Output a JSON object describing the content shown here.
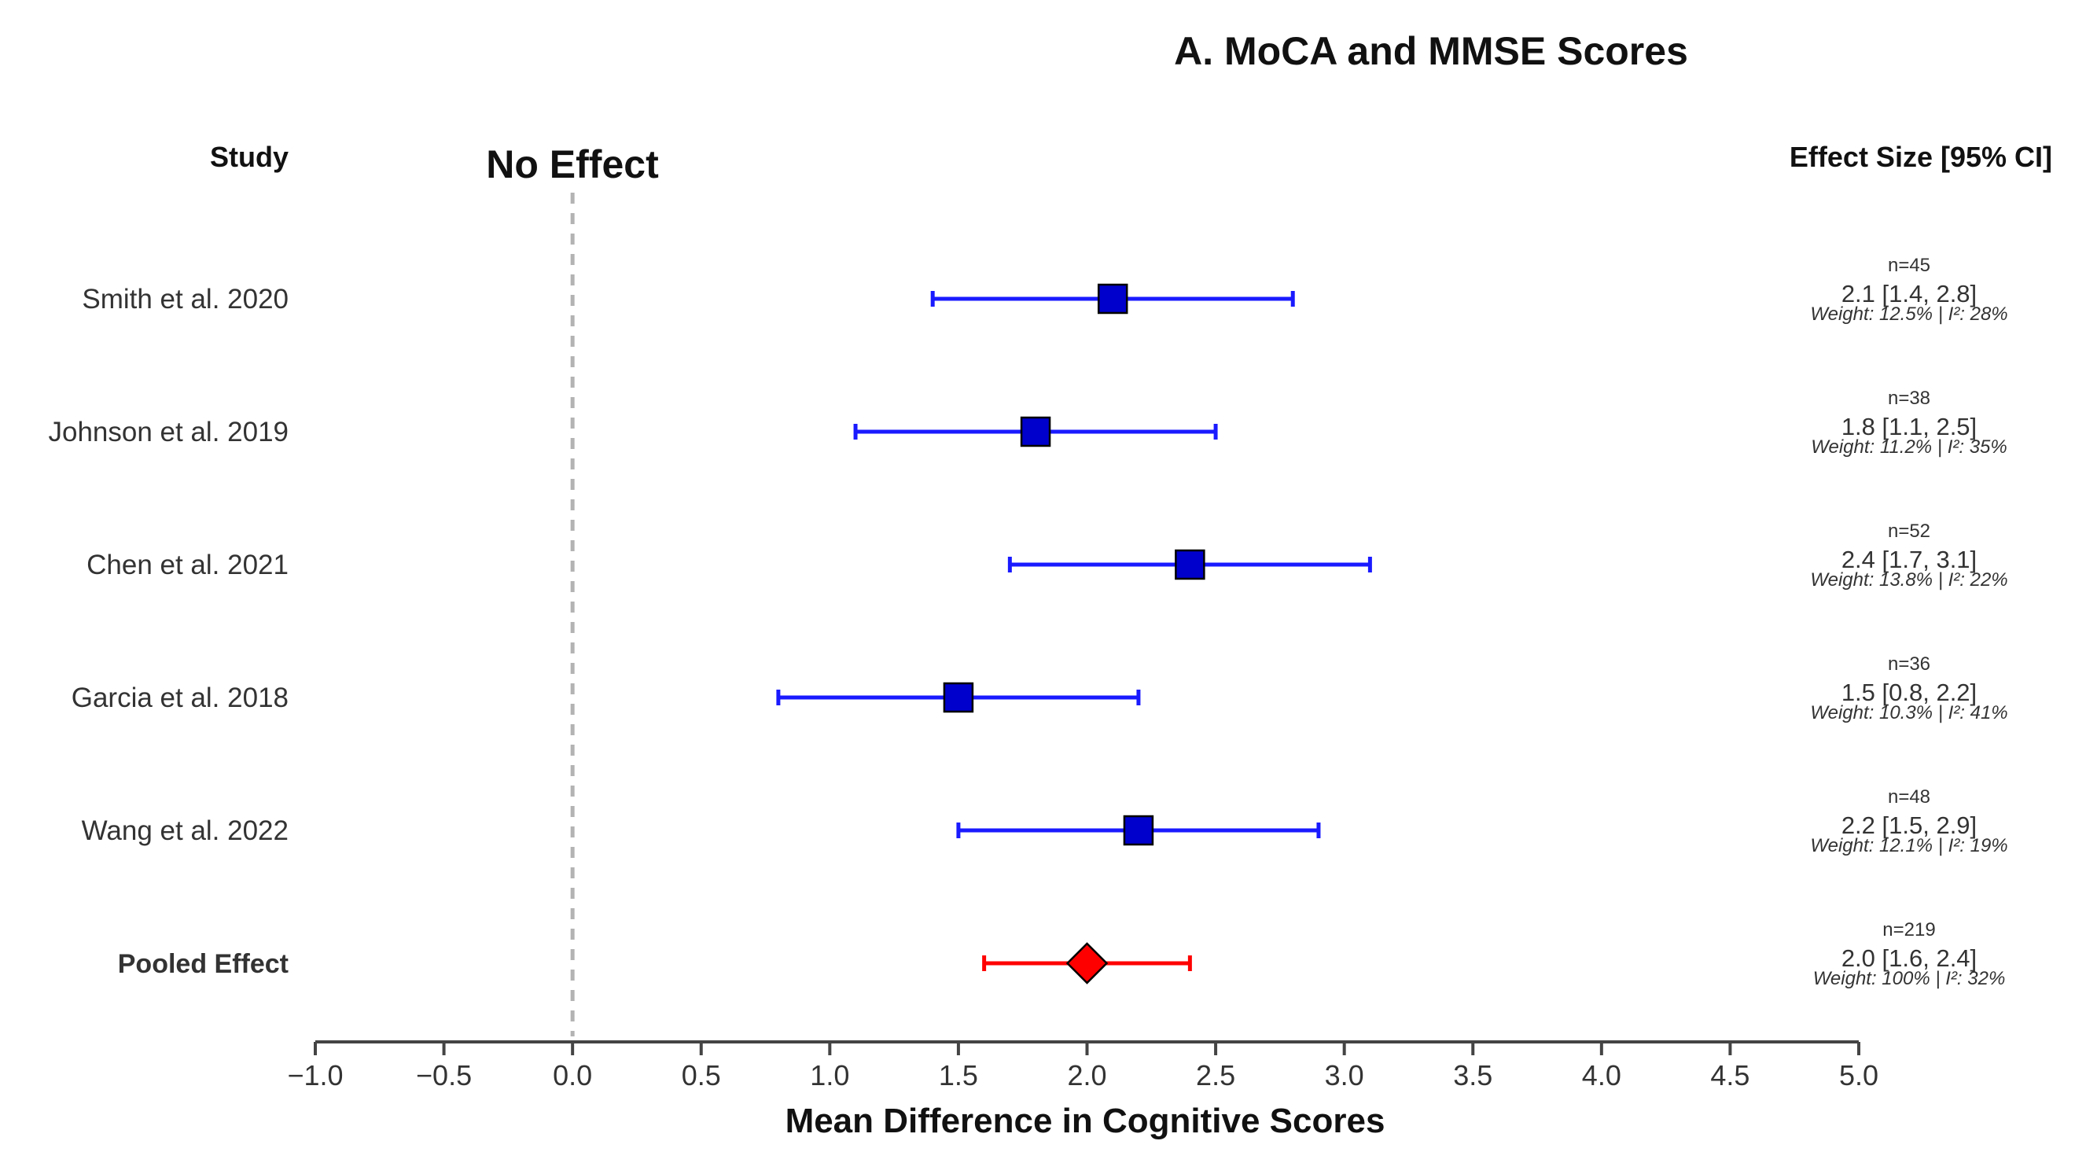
{
  "chart_data": {
    "type": "forest",
    "title": "A. MoCA and MMSE Scores",
    "study_header": "Study",
    "effect_header": "Effect Size [95% CI]",
    "reference_label": "No Effect",
    "reference_value": 0.0,
    "xlabel": "Mean Difference in Cognitive Scores",
    "xlim": [
      -1.0,
      5.0
    ],
    "xticks": [
      -1.0,
      -0.5,
      0.0,
      0.5,
      1.0,
      1.5,
      2.0,
      2.5,
      3.0,
      3.5,
      4.0,
      4.5,
      5.0
    ],
    "xtick_labels": [
      "−1.0",
      "−0.5",
      "0.0",
      "0.5",
      "1.0",
      "1.5",
      "2.0",
      "2.5",
      "3.0",
      "3.5",
      "4.0",
      "4.5",
      "5.0"
    ],
    "colors": {
      "study": "#1a1aff",
      "study_marker": "#0000cc",
      "pooled": "#ff0000",
      "reference": "#b3b3b3"
    },
    "studies": [
      {
        "name": "Smith et al. 2020",
        "estimate": 2.1,
        "lower": 1.4,
        "upper": 2.8,
        "n_label": "n=45",
        "ci_label": "2.1 [1.4, 2.8]",
        "weight_label": "Weight: 12.5% | I²: 28%"
      },
      {
        "name": "Johnson et al. 2019",
        "estimate": 1.8,
        "lower": 1.1,
        "upper": 2.5,
        "n_label": "n=38",
        "ci_label": "1.8 [1.1, 2.5]",
        "weight_label": "Weight: 11.2% | I²: 35%"
      },
      {
        "name": "Chen et al. 2021",
        "estimate": 2.4,
        "lower": 1.7,
        "upper": 3.1,
        "n_label": "n=52",
        "ci_label": "2.4 [1.7, 3.1]",
        "weight_label": "Weight: 13.8% | I²: 22%"
      },
      {
        "name": "Garcia et al. 2018",
        "estimate": 1.5,
        "lower": 0.8,
        "upper": 2.2,
        "n_label": "n=36",
        "ci_label": "1.5 [0.8, 2.2]",
        "weight_label": "Weight: 10.3% | I²: 41%"
      },
      {
        "name": "Wang et al. 2022",
        "estimate": 2.2,
        "lower": 1.5,
        "upper": 2.9,
        "n_label": "n=48",
        "ci_label": "2.2 [1.5, 2.9]",
        "weight_label": "Weight: 12.1% | I²: 19%"
      }
    ],
    "pooled": {
      "name": "Pooled Effect",
      "estimate": 2.0,
      "lower": 1.6,
      "upper": 2.4,
      "n_label": "n=219",
      "ci_label": "2.0 [1.6, 2.4]",
      "weight_label": "Weight: 100% | I²: 32%"
    }
  }
}
